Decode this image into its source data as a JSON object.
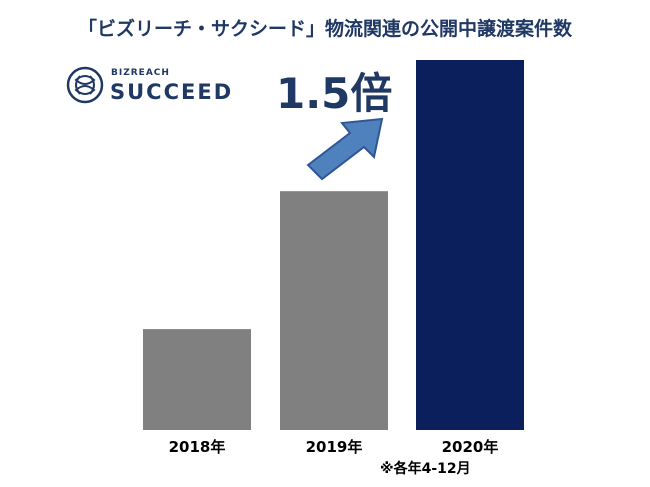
{
  "title": "「ビズリーチ・サクシード」物流関連の公開中譲渡案件数",
  "logo": {
    "small": "BIZREACH",
    "big": "SUCCEED",
    "icon": "knot-logo-icon"
  },
  "annotation": {
    "multiplier": "1.5倍",
    "icon": "arrow-up-right-icon"
  },
  "note": "※各年4-12月",
  "colors": {
    "gray": "#808080",
    "navy": "#0a1f5c",
    "arrow": "#4f81bd",
    "title": "#1f3864"
  },
  "chart_data": {
    "type": "bar",
    "categories": [
      "2018年",
      "2019年",
      "2020年"
    ],
    "values": [
      30,
      71,
      110
    ],
    "bar_colors": [
      "#808080",
      "#808080",
      "#0a1f5c"
    ],
    "title": "「ビズリーチ・サクシード」物流関連の公開中譲渡案件数",
    "ylim": [
      0,
      110
    ],
    "grid": false,
    "legend": "none"
  }
}
